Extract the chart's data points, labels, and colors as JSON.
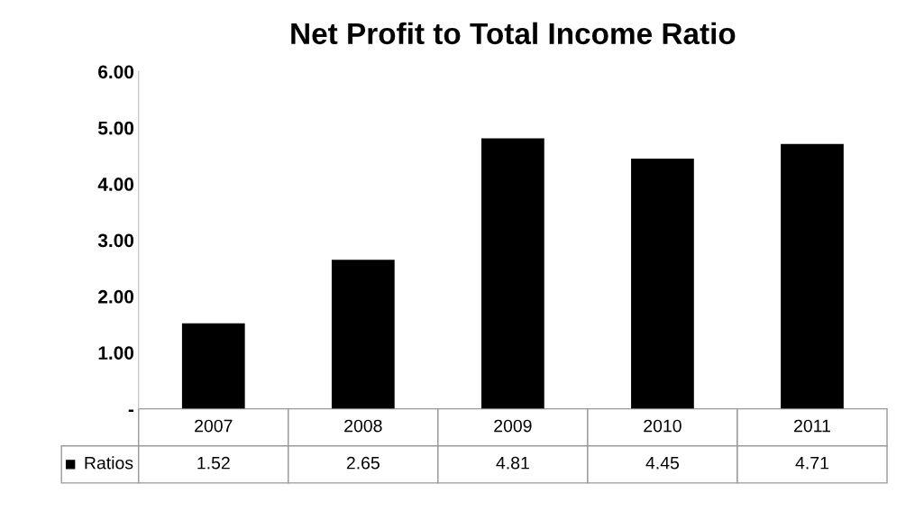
{
  "chart_data": {
    "type": "bar",
    "title": "Net Profit to Total Income Ratio",
    "categories": [
      "2007",
      "2008",
      "2009",
      "2010",
      "2011"
    ],
    "series": [
      {
        "name": "Ratios",
        "color": "#000000",
        "values": [
          1.52,
          2.65,
          4.81,
          4.45,
          4.71
        ]
      }
    ],
    "ylim": [
      0,
      6
    ],
    "yticks": [
      {
        "value": 0,
        "label": "-"
      },
      {
        "value": 1,
        "label": "1.00"
      },
      {
        "value": 2,
        "label": "2.00"
      },
      {
        "value": 3,
        "label": "3.00"
      },
      {
        "value": 4,
        "label": "4.00"
      },
      {
        "value": 5,
        "label": "5.00"
      },
      {
        "value": 6,
        "label": "6.00"
      }
    ],
    "data_labels": true,
    "grid": false
  }
}
